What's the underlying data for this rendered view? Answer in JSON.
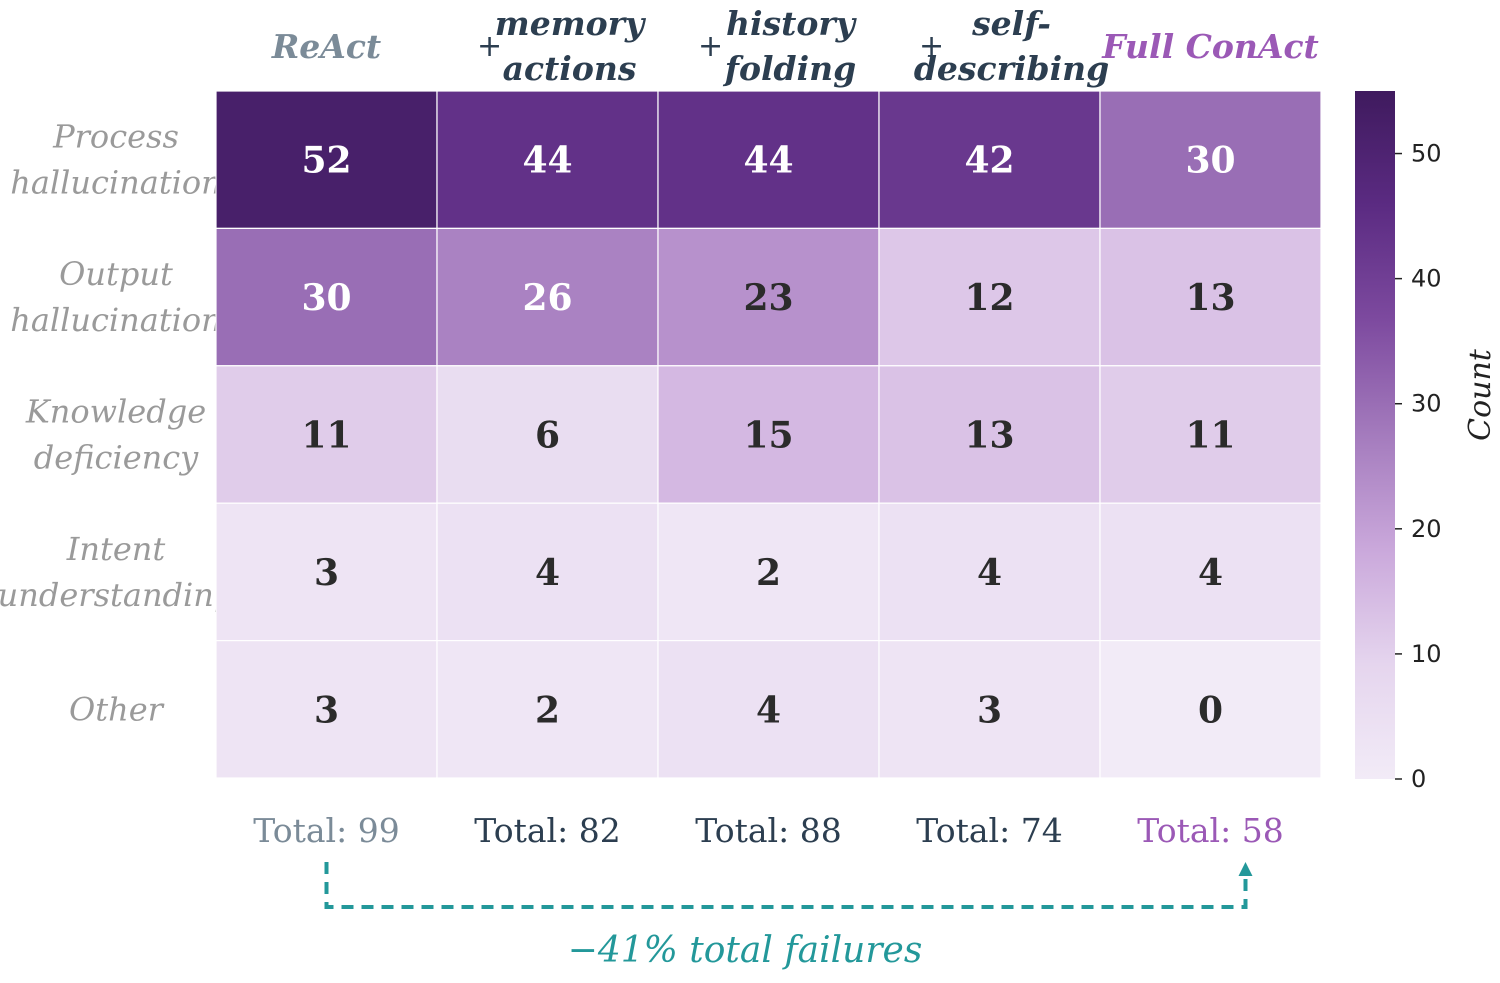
{
  "chart_data": {
    "type": "heatmap",
    "columns": [
      {
        "prefix": "",
        "lines": [
          "ReAct"
        ],
        "color": "#7b8b98"
      },
      {
        "prefix": "+",
        "lines": [
          "memory",
          "actions"
        ],
        "color": "#2c3e50"
      },
      {
        "prefix": "+",
        "lines": [
          "history",
          "folding"
        ],
        "color": "#2c3e50"
      },
      {
        "prefix": "+",
        "lines": [
          "self-",
          "describing"
        ],
        "color": "#2c3e50"
      },
      {
        "prefix": "",
        "lines": [
          "Full ConAct"
        ],
        "color": "#9b59b6"
      }
    ],
    "rows": [
      {
        "lines": [
          "Process",
          "hallucination"
        ]
      },
      {
        "lines": [
          "Output",
          "hallucination"
        ]
      },
      {
        "lines": [
          "Knowledge",
          "deficiency"
        ]
      },
      {
        "lines": [
          "Intent",
          "understanding"
        ]
      },
      {
        "lines": [
          "Other"
        ]
      }
    ],
    "values": [
      [
        52,
        44,
        44,
        42,
        30
      ],
      [
        30,
        26,
        23,
        12,
        13
      ],
      [
        11,
        6,
        15,
        13,
        11
      ],
      [
        3,
        4,
        2,
        4,
        4
      ],
      [
        3,
        2,
        4,
        3,
        0
      ]
    ],
    "totals": [
      {
        "label": "Total: 99",
        "color": "#7b8b98"
      },
      {
        "label": "Total: 82",
        "color": "#2c3e50"
      },
      {
        "label": "Total: 88",
        "color": "#2c3e50"
      },
      {
        "label": "Total: 74",
        "color": "#2c3e50"
      },
      {
        "label": "Total: 58",
        "color": "#9b59b6"
      }
    ],
    "colorbar": {
      "label": "Count",
      "range": [
        0,
        55
      ],
      "ticks": [
        0,
        10,
        20,
        30,
        40,
        50
      ],
      "colors": [
        "#f2ebf7",
        "#e5d5ee",
        "#caa8db",
        "#a47bbd",
        "#7d4a9f",
        "#5b2b82",
        "#3f1a5e"
      ]
    },
    "annotation": {
      "text": "−41% total failures",
      "color": "#23989a"
    }
  }
}
